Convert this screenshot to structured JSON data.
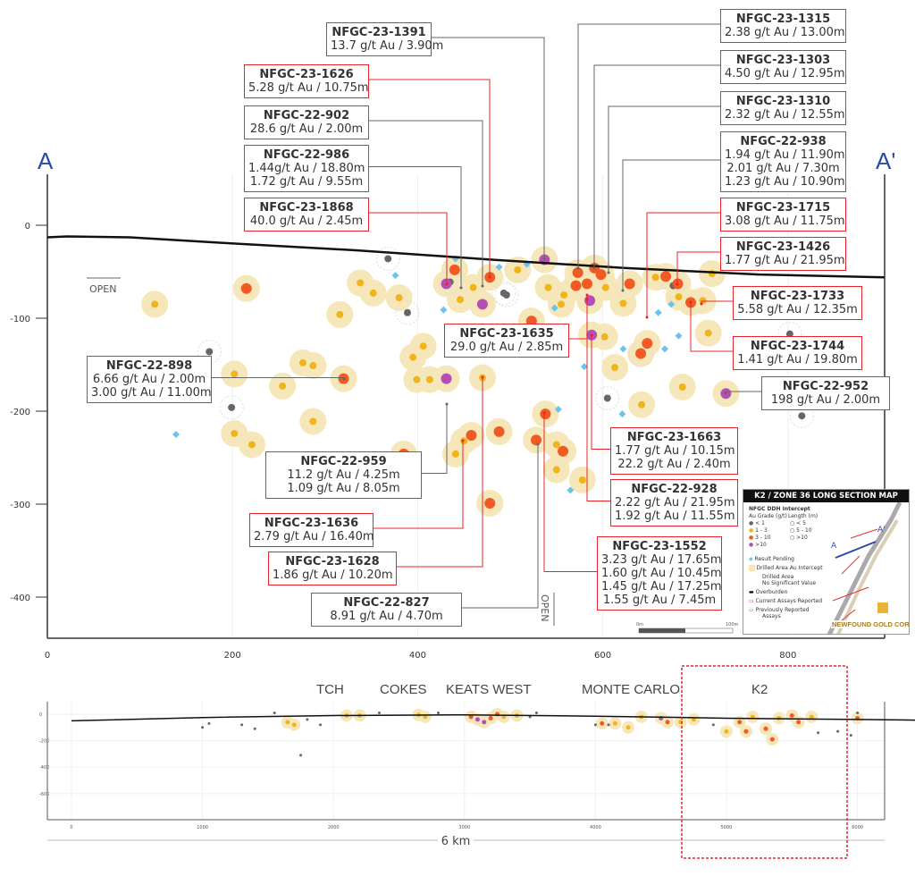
{
  "section": {
    "left_label": "A",
    "right_label": "A'",
    "open_left": "OPEN",
    "open_down": "OPEN",
    "x_ticks": [
      0,
      200,
      400,
      600,
      800
    ],
    "y_ticks": [
      0,
      -100,
      -200,
      -300,
      -400
    ]
  },
  "colors": {
    "lt1": "#666666",
    "g1_3": "#f0b41c",
    "g3_10": "#f15a22",
    "gt10": "#b54fb4",
    "halo": "#f6e7ba",
    "pending": "#6cc3ec",
    "current": "#e8242a",
    "previous": "#666666"
  },
  "surface": [
    [
      0,
      -13
    ],
    [
      21,
      -12
    ],
    [
      89,
      -13
    ],
    [
      190,
      -19
    ],
    [
      335,
      -27
    ],
    [
      480,
      -37
    ],
    [
      625,
      -46
    ],
    [
      769,
      -53
    ],
    [
      904,
      -56
    ]
  ],
  "intercepts": [
    [
      116,
      -85,
      "g1"
    ],
    [
      215,
      -68,
      "g3"
    ],
    [
      202,
      -160,
      "g1"
    ],
    [
      254,
      -173,
      "g1"
    ],
    [
      276,
      -148,
      "g1"
    ],
    [
      287,
      -151,
      "g1"
    ],
    [
      320,
      -165,
      "g3"
    ],
    [
      287,
      -211,
      "g1"
    ],
    [
      202,
      -224,
      "g1"
    ],
    [
      221,
      -236,
      "g1"
    ],
    [
      316,
      -96,
      "g1"
    ],
    [
      338,
      -62,
      "g1"
    ],
    [
      352,
      -73,
      "g1"
    ],
    [
      380,
      -78,
      "g1"
    ],
    [
      395,
      -142,
      "g1"
    ],
    [
      406,
      -130,
      "g1"
    ],
    [
      413,
      -166,
      "g1"
    ],
    [
      431,
      -165,
      "g10"
    ],
    [
      399,
      -166,
      "g1"
    ],
    [
      431,
      -63,
      "g10"
    ],
    [
      440,
      -48,
      "g3"
    ],
    [
      446,
      -80,
      "g1"
    ],
    [
      460,
      -67,
      "g1"
    ],
    [
      470,
      -85,
      "g10"
    ],
    [
      478,
      -56,
      "g3"
    ],
    [
      470,
      -164,
      "g1"
    ],
    [
      450,
      -232,
      "g1"
    ],
    [
      441,
      -246,
      "g1"
    ],
    [
      458,
      -226,
      "g3"
    ],
    [
      385,
      -246,
      "g3"
    ],
    [
      488,
      -222,
      "g3"
    ],
    [
      478,
      -299,
      "g3"
    ],
    [
      508,
      -48,
      "g1"
    ],
    [
      523,
      -103,
      "g3"
    ],
    [
      537,
      -37,
      "g10"
    ],
    [
      528,
      -231,
      "g3"
    ],
    [
      538,
      -203,
      "g3"
    ],
    [
      550,
      -236,
      "g1"
    ],
    [
      550,
      -263,
      "g1"
    ],
    [
      557,
      -243,
      "g3"
    ],
    [
      578,
      -274,
      "g1"
    ],
    [
      541,
      -67,
      "g1"
    ],
    [
      555,
      -85,
      "g1"
    ],
    [
      571,
      -65,
      "g3"
    ],
    [
      573,
      -51,
      "g3"
    ],
    [
      583,
      -63,
      "g3"
    ],
    [
      586,
      -81,
      "g10"
    ],
    [
      591,
      -46,
      "g3"
    ],
    [
      598,
      -53,
      "g3"
    ],
    [
      603,
      -67,
      "g1"
    ],
    [
      588,
      -118,
      "g10"
    ],
    [
      602,
      -120,
      "g1"
    ],
    [
      622,
      -84,
      "g1"
    ],
    [
      629,
      -63,
      "g3"
    ],
    [
      613,
      -153,
      "g1"
    ],
    [
      648,
      -127,
      "g3"
    ],
    [
      641,
      -138,
      "g3"
    ],
    [
      668,
      -55,
      "g3"
    ],
    [
      657,
      -56,
      "g1"
    ],
    [
      682,
      -77,
      "g1"
    ],
    [
      695,
      -83,
      "g3"
    ],
    [
      681,
      -63,
      "g3"
    ],
    [
      708,
      -81,
      "g1"
    ],
    [
      714,
      -116,
      "g1"
    ],
    [
      718,
      -52,
      "g1"
    ],
    [
      686,
      -174,
      "g1"
    ],
    [
      733,
      -181,
      "g10"
    ],
    [
      642,
      -193,
      "g1"
    ],
    [
      558,
      -75,
      "g1"
    ]
  ],
  "low_grade": [
    [
      368,
      -36
    ],
    [
      389,
      -94
    ],
    [
      435,
      -61
    ],
    [
      493,
      -73
    ],
    [
      496,
      -75
    ],
    [
      175,
      -136
    ],
    [
      199,
      -196
    ],
    [
      605,
      -186
    ],
    [
      641,
      -139
    ],
    [
      802,
      -117
    ],
    [
      815,
      -205
    ],
    [
      676,
      -65
    ]
  ],
  "pending": [
    [
      139,
      -225
    ],
    [
      376,
      -54
    ],
    [
      428,
      -91
    ],
    [
      441,
      -36
    ],
    [
      488,
      -45
    ],
    [
      518,
      -42
    ],
    [
      548,
      -89
    ],
    [
      565,
      -285
    ],
    [
      580,
      -152
    ],
    [
      621,
      -203
    ],
    [
      660,
      -94
    ],
    [
      674,
      -85
    ],
    [
      682,
      -119
    ],
    [
      667,
      -133
    ],
    [
      552,
      -198
    ],
    [
      622,
      -133
    ]
  ],
  "callouts": [
    {
      "id": "NFGC-23-1391",
      "lines": [
        "13.7 g/t Au / 3.90m"
      ],
      "status": "previous"
    },
    {
      "id": "NFGC-23-1626",
      "lines": [
        "5.28 g/t Au / 10.75m"
      ],
      "status": "current"
    },
    {
      "id": "NFGC-22-902",
      "lines": [
        "28.6 g/t Au / 2.00m"
      ],
      "status": "previous"
    },
    {
      "id": "NFGC-22-986",
      "lines": [
        "1.44g/t Au / 18.80m",
        "1.72 g/t Au / 9.55m"
      ],
      "status": "previous"
    },
    {
      "id": "NFGC-23-1868",
      "lines": [
        "40.0 g/t Au / 2.45m"
      ],
      "status": "current"
    },
    {
      "id": "NFGC-23-1315",
      "lines": [
        "2.38 g/t Au / 13.00m"
      ],
      "status": "previous"
    },
    {
      "id": "NFGC-23-1303",
      "lines": [
        "4.50 g/t Au / 12.95m"
      ],
      "status": "previous"
    },
    {
      "id": "NFGC-23-1310",
      "lines": [
        "2.32 g/t Au / 12.55m"
      ],
      "status": "previous"
    },
    {
      "id": "NFGC-22-938",
      "lines": [
        "1.94 g/t Au / 11.90m",
        "2.01 g/t Au / 7.30m",
        "1.23 g/t Au / 10.90m"
      ],
      "status": "previous"
    },
    {
      "id": "NFGC-23-1715",
      "lines": [
        "3.08 g/t Au / 11.75m"
      ],
      "status": "current"
    },
    {
      "id": "NFGC-23-1426",
      "lines": [
        "1.77 g/t Au / 21.95m"
      ],
      "status": "current"
    },
    {
      "id": "NFGC-23-1733",
      "lines": [
        "5.58 g/t Au / 12.35m"
      ],
      "status": "current"
    },
    {
      "id": "NFGC-23-1744",
      "lines": [
        "1.41 g/t Au / 19.80m"
      ],
      "status": "current"
    },
    {
      "id": "NFGC-22-952",
      "lines": [
        "198 g/t Au / 2.00m"
      ],
      "status": "previous"
    },
    {
      "id": "NFGC-23-1635",
      "lines": [
        "29.0 g/t Au / 2.85m"
      ],
      "status": "current"
    },
    {
      "id": "NFGC-22-898",
      "lines": [
        "6.66 g/t Au / 2.00m",
        "3.00 g/t Au / 11.00m"
      ],
      "status": "previous"
    },
    {
      "id": "NFGC-23-1663",
      "lines": [
        "1.77 g/t Au / 10.15m",
        "22.2 g/t Au / 2.40m"
      ],
      "status": "current"
    },
    {
      "id": "NFGC-22-928",
      "lines": [
        "2.22 g/t Au / 21.95m",
        "1.92 g/t Au / 11.55m"
      ],
      "status": "current"
    },
    {
      "id": "NFGC-23-1552",
      "lines": [
        "3.23 g/t Au / 17.65m",
        "1.60 g/t Au / 10.45m",
        "1.45 g/t Au / 17.25m",
        "1.55 g/t Au / 7.45m"
      ],
      "status": "current"
    },
    {
      "id": "NFGC-22-959",
      "lines": [
        "11.2 g/t Au / 4.25m",
        "1.09 g/t Au / 8.05m"
      ],
      "status": "previous"
    },
    {
      "id": "NFGC-23-1636",
      "lines": [
        "2.79 g/t Au / 16.40m"
      ],
      "status": "current"
    },
    {
      "id": "NFGC-23-1628",
      "lines": [
        "1.86 g/t Au / 10.20m"
      ],
      "status": "current"
    },
    {
      "id": "NFGC-22-827",
      "lines": [
        "8.91 g/t Au / 4.70m"
      ],
      "status": "previous"
    }
  ],
  "scale_bar": {
    "start": "0m",
    "end": "100m"
  },
  "legend": {
    "title": "K2 / ZONE 36 LONG SECTION MAP",
    "subtitle": "NFGC DDH Intercept",
    "grade_header": "Au Grade (g/t)",
    "length_header": "Length (m)",
    "grades": [
      "< 1",
      "1 - 3",
      "3 - 10",
      ">10"
    ],
    "lengths": [
      "< 5",
      "5 - 10",
      ">10"
    ],
    "items": [
      "Result Pending",
      "Drilled Area Au Intercept",
      "Drilled Area",
      "No Significant Value",
      "Overburden",
      "Current Assays Reported",
      "Previously Reported",
      "Assays"
    ],
    "map_a": "A",
    "map_a_prime": "A'",
    "logo": "NEWFOUND GOLD CORP"
  },
  "overview": {
    "zones": [
      "TCH",
      "COKES",
      "KEATS WEST",
      "MONTE CARLO",
      "K2"
    ],
    "x_ticks": [
      0,
      1000,
      2000,
      3000,
      4000,
      5000,
      6000
    ],
    "y_ticks": [
      0,
      -200,
      -400,
      -600
    ],
    "distance_label": "6 km",
    "surface": [
      [
        0,
        -50
      ],
      [
        1000,
        -25
      ],
      [
        2000,
        -10
      ],
      [
        3000,
        -5
      ],
      [
        4000,
        -15
      ],
      [
        5000,
        -30
      ],
      [
        6000,
        -40
      ],
      [
        6500,
        -45
      ]
    ],
    "intercepts": [
      [
        1650,
        -60,
        "g1"
      ],
      [
        1700,
        -80,
        "g1"
      ],
      [
        2100,
        -10,
        "g1"
      ],
      [
        2200,
        -10,
        "g1"
      ],
      [
        2650,
        -5,
        "g1"
      ],
      [
        2700,
        -20,
        "g1"
      ],
      [
        3050,
        -20,
        "g3"
      ],
      [
        3100,
        -40,
        "g10"
      ],
      [
        3150,
        -60,
        "g10"
      ],
      [
        3200,
        -30,
        "g3"
      ],
      [
        3250,
        0,
        "g3"
      ],
      [
        3300,
        -20,
        "g1"
      ],
      [
        3400,
        -10,
        "g1"
      ],
      [
        4050,
        -70,
        "g3"
      ],
      [
        4150,
        -70,
        "g1"
      ],
      [
        4250,
        -100,
        "g1"
      ],
      [
        4350,
        -20,
        "g1"
      ],
      [
        4500,
        -30,
        "g10"
      ],
      [
        4550,
        -60,
        "g3"
      ],
      [
        4650,
        -60,
        "g1"
      ],
      [
        4750,
        -40,
        "g1"
      ],
      [
        5000,
        -130,
        "g1"
      ],
      [
        5100,
        -60,
        "g3"
      ],
      [
        5150,
        -130,
        "g3"
      ],
      [
        5200,
        -20,
        "g1"
      ],
      [
        5300,
        -110,
        "g3"
      ],
      [
        5350,
        -190,
        "g3"
      ],
      [
        5400,
        -30,
        "g1"
      ],
      [
        5500,
        -10,
        "g3"
      ],
      [
        5550,
        -60,
        "g3"
      ],
      [
        5650,
        -20,
        "g1"
      ],
      [
        6000,
        -30,
        "g3"
      ]
    ],
    "low_grade": [
      [
        1000,
        -100
      ],
      [
        1050,
        -70
      ],
      [
        1300,
        -80
      ],
      [
        1400,
        -110
      ],
      [
        1550,
        10
      ],
      [
        1750,
        -310
      ],
      [
        1800,
        -40
      ],
      [
        1900,
        -80
      ],
      [
        2350,
        10
      ],
      [
        2800,
        10
      ],
      [
        3500,
        -20
      ],
      [
        3550,
        10
      ],
      [
        4000,
        -80
      ],
      [
        4100,
        -80
      ],
      [
        4900,
        -80
      ],
      [
        5700,
        -140
      ],
      [
        5850,
        -130
      ],
      [
        5950,
        -160
      ],
      [
        6000,
        10
      ]
    ]
  }
}
